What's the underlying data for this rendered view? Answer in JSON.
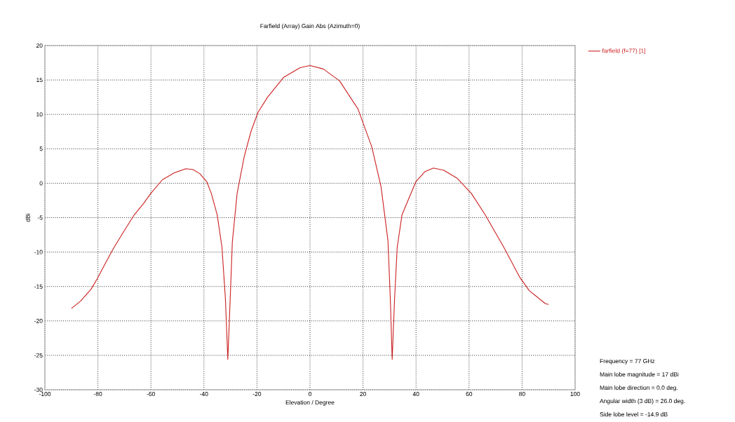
{
  "chart_data": {
    "type": "line",
    "title": "Farfield (Array) Gain Abs (Azimuth=0)",
    "xlabel": "Elevation / Degree",
    "ylabel": "dBi",
    "xlim": [
      -100,
      100
    ],
    "xticks": [
      -100,
      -80,
      -60,
      -40,
      -20,
      0,
      20,
      40,
      60,
      80,
      100
    ],
    "ylim": [
      -30,
      20
    ],
    "yticks": [
      -30,
      -25,
      -20,
      -15,
      -10,
      -5,
      0,
      5,
      10,
      15,
      20
    ],
    "grid": true,
    "legend": "top right",
    "marker": "none",
    "line_style": "solid",
    "series": [
      {
        "name": "farfield (f=77) [1]",
        "color": "#cc2020",
        "x": [
          -90,
          -86.5,
          -82.6,
          -80,
          -77.7,
          -74.2,
          -70.7,
          -66.3,
          -62.7,
          -60.1,
          -55.7,
          -51.3,
          -46.9,
          -44.2,
          -41.6,
          -38.9,
          -37.2,
          -35,
          -33.2,
          -31.9,
          -31,
          -30.1,
          -29.3,
          -27.5,
          -24.8,
          -22.2,
          -19.6,
          -16,
          -9.9,
          -3.7,
          0,
          5,
          11.1,
          18.1,
          23.3,
          26.8,
          29.4,
          30.3,
          31,
          31.9,
          32.9,
          34.7,
          39.9,
          43.4,
          46.5,
          50.4,
          55.6,
          60.9,
          66.1,
          73.1,
          79.2,
          82.7,
          88.8,
          90
        ],
        "values": [
          -18.2,
          -17.1,
          -15.4,
          -13.7,
          -12.0,
          -9.5,
          -7.3,
          -4.6,
          -2.9,
          -1.5,
          0.5,
          1.5,
          2.1,
          2.0,
          1.4,
          0.2,
          -1.5,
          -4.6,
          -9.3,
          -16.8,
          -25.6,
          -16.8,
          -8.6,
          -1.5,
          3.9,
          7.6,
          10.3,
          12.5,
          15.4,
          16.8,
          17.1,
          16.6,
          14.9,
          10.8,
          5.3,
          -0.5,
          -8.3,
          -16.8,
          -25.6,
          -16.8,
          -9.3,
          -4.6,
          0.2,
          1.7,
          2.2,
          1.9,
          0.7,
          -1.5,
          -4.6,
          -9.3,
          -13.7,
          -15.6,
          -17.5,
          -17.6
        ]
      }
    ],
    "annotations": [
      "Frequency = 77 GHz",
      "Main lobe magnitude =      17 dBi",
      "Main lobe direction =   0.0 deg.",
      "Angular width (3 dB) =   26.0 deg.",
      "Side lobe level =  -14.9 dB"
    ]
  }
}
